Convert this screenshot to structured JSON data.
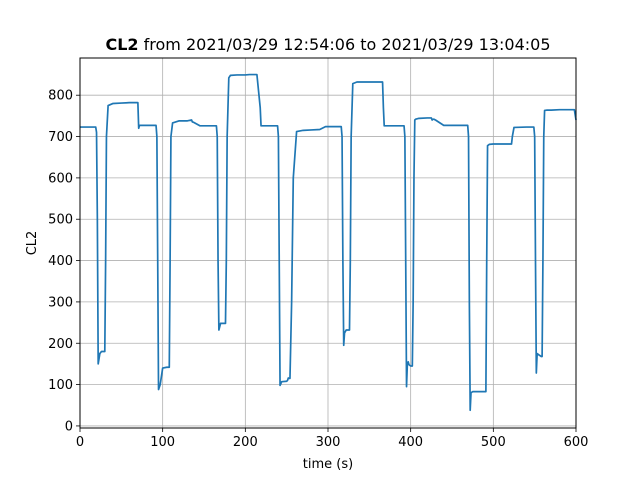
{
  "chart_data": {
    "type": "line",
    "title_bold": "CL2",
    "title_rest": " from 2021/03/29 12:54:06 to 2021/03/29 13:04:05",
    "xlabel": "time (s)",
    "ylabel": "CL2",
    "xlim": [
      0,
      600
    ],
    "ylim": [
      -5,
      890
    ],
    "xticks": [
      0,
      100,
      200,
      300,
      400,
      500,
      600
    ],
    "yticks": [
      0,
      100,
      200,
      300,
      400,
      500,
      600,
      700,
      800
    ],
    "grid": true,
    "series": [
      {
        "color": "#1f77b4",
        "x": [
          0,
          19,
          20,
          21,
          22,
          24,
          26,
          30,
          31,
          32,
          34,
          40,
          50,
          60,
          70,
          71,
          72,
          74,
          80,
          90,
          92,
          93,
          94,
          95,
          97,
          100,
          105,
          108,
          109,
          110,
          112,
          120,
          130,
          135,
          136,
          137,
          145,
          150,
          165,
          166,
          167,
          168,
          170,
          176,
          177,
          178,
          180,
          182,
          190,
          200,
          205,
          214,
          218,
          219,
          220,
          230,
          239,
          240,
          241,
          242,
          244,
          250,
          251,
          252,
          253,
          254,
          256,
          258,
          262,
          270,
          280,
          290,
          297,
          298,
          300,
          310,
          316,
          317,
          318,
          319,
          320,
          322,
          326,
          327,
          328,
          330,
          335,
          340,
          350,
          360,
          366,
          367,
          368,
          370,
          380,
          392,
          393,
          394,
          395,
          396,
          397,
          398,
          400,
          402,
          403,
          404,
          405,
          406,
          410,
          420,
          425,
          426,
          427,
          428,
          430,
          440,
          450,
          468,
          469,
          470,
          471,
          472,
          473,
          475,
          478,
          490,
          491,
          492,
          493,
          495,
          500,
          510,
          520,
          522,
          523,
          525,
          540,
          548,
          549,
          550,
          551,
          552,
          553,
          555,
          558,
          559,
          560,
          561,
          562,
          565,
          570,
          580,
          590,
          598,
          600
        ],
        "y": [
          723,
          723,
          710,
          500,
          150,
          175,
          180,
          180,
          400,
          700,
          775,
          780,
          781,
          782,
          782,
          720,
          727,
          727,
          727,
          727,
          727,
          700,
          400,
          88,
          100,
          140,
          142,
          142,
          400,
          700,
          733,
          738,
          738,
          740,
          735,
          735,
          726,
          726,
          726,
          700,
          400,
          232,
          248,
          248,
          400,
          700,
          842,
          848,
          849,
          849,
          850,
          850,
          770,
          726,
          726,
          726,
          726,
          700,
          400,
          98,
          107,
          108,
          110,
          116,
          115,
          115,
          300,
          600,
          712,
          715,
          716,
          717,
          724,
          724,
          724,
          724,
          724,
          700,
          400,
          195,
          225,
          232,
          232,
          400,
          700,
          828,
          832,
          832,
          832,
          832,
          832,
          770,
          726,
          726,
          726,
          726,
          700,
          400,
          95,
          150,
          155,
          148,
          145,
          145,
          300,
          600,
          740,
          742,
          744,
          745,
          745,
          740,
          742,
          742,
          740,
          727,
          727,
          727,
          727,
          700,
          300,
          38,
          80,
          83,
          83,
          83,
          83,
          400,
          678,
          681,
          682,
          682,
          682,
          682,
          700,
          722,
          723,
          723,
          723,
          700,
          400,
          128,
          175,
          172,
          168,
          168,
          400,
          700,
          763,
          764,
          764,
          765,
          765,
          765,
          740
        ]
      }
    ]
  }
}
